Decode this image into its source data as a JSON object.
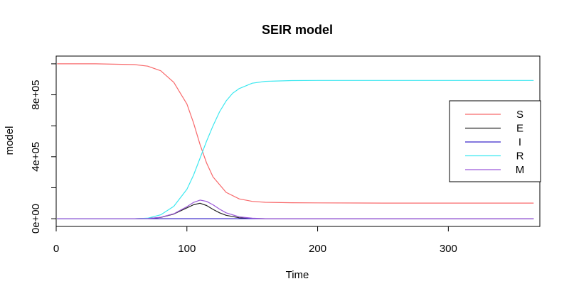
{
  "chart_data": {
    "type": "line",
    "title": "SEIR model",
    "xlabel": "Time",
    "ylabel": "model",
    "xlim": [
      0,
      370
    ],
    "ylim": [
      -50000,
      1050000
    ],
    "x_ticks": [
      0,
      100,
      200,
      300
    ],
    "x_tick_labels": [
      "0",
      "100",
      "200",
      "300"
    ],
    "y_ticks": [
      0,
      200000,
      400000,
      600000,
      800000,
      1000000
    ],
    "y_tick_labels": [
      "0e+00",
      "",
      "4e+05",
      "",
      "8e+05",
      ""
    ],
    "grid": false,
    "legend_position": "right",
    "series": [
      {
        "name": "S",
        "color": "#f8696b",
        "x": [
          1,
          30,
          60,
          70,
          80,
          90,
          100,
          105,
          110,
          115,
          120,
          130,
          140,
          150,
          160,
          180,
          200,
          250,
          300,
          365
        ],
        "y": [
          1000000,
          1000000,
          995000,
          985000,
          955000,
          880000,
          740000,
          620000,
          480000,
          360000,
          270000,
          170000,
          128000,
          112000,
          106000,
          103000,
          102000,
          101000,
          101000,
          101000
        ]
      },
      {
        "name": "E",
        "color": "#222222",
        "x": [
          1,
          60,
          70,
          80,
          90,
          100,
          105,
          110,
          115,
          120,
          125,
          130,
          140,
          150,
          160,
          200,
          365
        ],
        "y": [
          0,
          0,
          1000,
          8000,
          30000,
          70000,
          90000,
          100000,
          85000,
          60000,
          38000,
          22000,
          6000,
          1500,
          0,
          0,
          0
        ]
      },
      {
        "name": "I",
        "color": "#3a27c9",
        "x": [
          1,
          365
        ],
        "y": [
          0,
          0
        ]
      },
      {
        "name": "R",
        "color": "#3de8f0",
        "x": [
          1,
          60,
          70,
          80,
          90,
          100,
          105,
          110,
          115,
          120,
          125,
          130,
          135,
          140,
          150,
          160,
          180,
          200,
          250,
          300,
          365
        ],
        "y": [
          0,
          0,
          3000,
          25000,
          80000,
          190000,
          280000,
          390000,
          500000,
          600000,
          690000,
          760000,
          810000,
          840000,
          875000,
          887000,
          892000,
          893000,
          893000,
          893000,
          893000
        ]
      },
      {
        "name": "M",
        "color": "#9c59d9",
        "x": [
          1,
          60,
          70,
          80,
          90,
          100,
          105,
          110,
          115,
          120,
          125,
          130,
          140,
          150,
          160,
          200,
          365
        ],
        "y": [
          0,
          0,
          1500,
          9000,
          32000,
          78000,
          105000,
          120000,
          112000,
          90000,
          62000,
          38000,
          12000,
          3000,
          0,
          0,
          0
        ]
      }
    ]
  }
}
